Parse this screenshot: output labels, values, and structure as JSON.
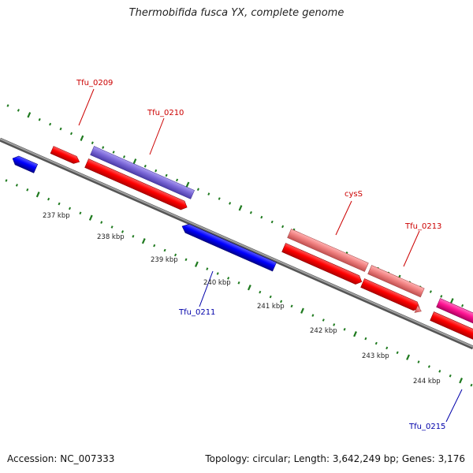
{
  "title": "Thermobifida fusca YX, complete genome",
  "footer": {
    "accession": "Accession: NC_007333",
    "summary": "Topology: circular; Length: 3,642,249 bp; Genes: 3,176"
  },
  "scale_labels": [
    "237 kbp",
    "238 kbp",
    "239 kbp",
    "240 kbp",
    "241 kbp",
    "242 kbp",
    "243 kbp",
    "244 kbp"
  ],
  "genes": [
    {
      "name": "Tfu_0209",
      "strand": "+",
      "color": "#ff0000",
      "labelled": true
    },
    {
      "name": "Tfu_0210",
      "strand": "+",
      "color": "#7b68d8",
      "labelled": true
    },
    {
      "name": "",
      "strand": "+",
      "color": "#ff0000",
      "labelled": false
    },
    {
      "name": "Tfu_0211",
      "strand": "-",
      "color": "#0000ff",
      "labelled": true
    },
    {
      "name": "cysS",
      "strand": "+",
      "color": "#f08080",
      "labelled": true
    },
    {
      "name": "Tfu_0213",
      "strand": "+",
      "color": "#f08080",
      "labelled": true
    },
    {
      "name": "Tfu_0215",
      "strand": "-",
      "color": "#ff1493",
      "labelled": true
    }
  ],
  "colors": {
    "backbone": "#808080",
    "tick_marks": "#1f7a1f",
    "label_forward": "#cc0000",
    "label_reverse": "#0000aa"
  }
}
